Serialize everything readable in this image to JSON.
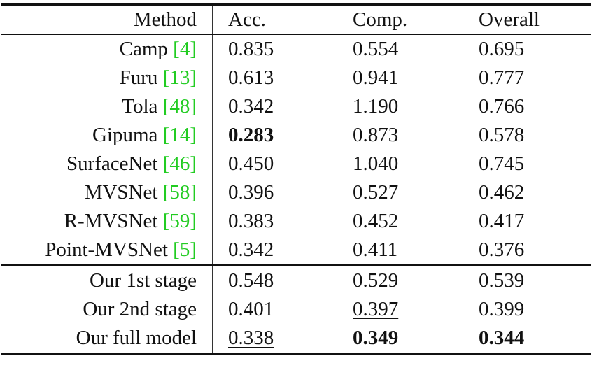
{
  "table": {
    "columns": [
      "Method",
      "Acc.",
      "Comp.",
      "Overall"
    ],
    "groups": [
      {
        "rows": [
          {
            "method": "Camp",
            "cite": "[4]",
            "values": [
              "0.835",
              "0.554",
              "0.695"
            ]
          },
          {
            "method": "Furu",
            "cite": "[13]",
            "values": [
              "0.613",
              "0.941",
              "0.777"
            ]
          },
          {
            "method": "Tola",
            "cite": "[48]",
            "values": [
              "0.342",
              "1.190",
              "0.766"
            ]
          },
          {
            "method": "Gipuma",
            "cite": "[14]",
            "values": [
              "0.283",
              "0.873",
              "0.578"
            ],
            "bold": [
              0
            ]
          },
          {
            "method": "SurfaceNet",
            "cite": "[46]",
            "values": [
              "0.450",
              "1.040",
              "0.745"
            ]
          },
          {
            "method": "MVSNet",
            "cite": "[58]",
            "values": [
              "0.396",
              "0.527",
              "0.462"
            ]
          },
          {
            "method": "R-MVSNet",
            "cite": "[59]",
            "values": [
              "0.383",
              "0.452",
              "0.417"
            ]
          },
          {
            "method": "Point-MVSNet",
            "cite": "[5]",
            "values": [
              "0.342",
              "0.411",
              "0.376"
            ],
            "underline": [
              2
            ]
          }
        ]
      },
      {
        "rows": [
          {
            "method": "Our 1st stage",
            "values": [
              "0.548",
              "0.529",
              "0.539"
            ]
          },
          {
            "method": "Our 2nd stage",
            "values": [
              "0.401",
              "0.397",
              "0.399"
            ],
            "underline": [
              1
            ]
          },
          {
            "method": "Our full model",
            "values": [
              "0.338",
              "0.349",
              "0.344"
            ],
            "bold": [
              1,
              2
            ],
            "underline": [
              0
            ]
          }
        ]
      }
    ],
    "cite_color": "#22cc22"
  }
}
